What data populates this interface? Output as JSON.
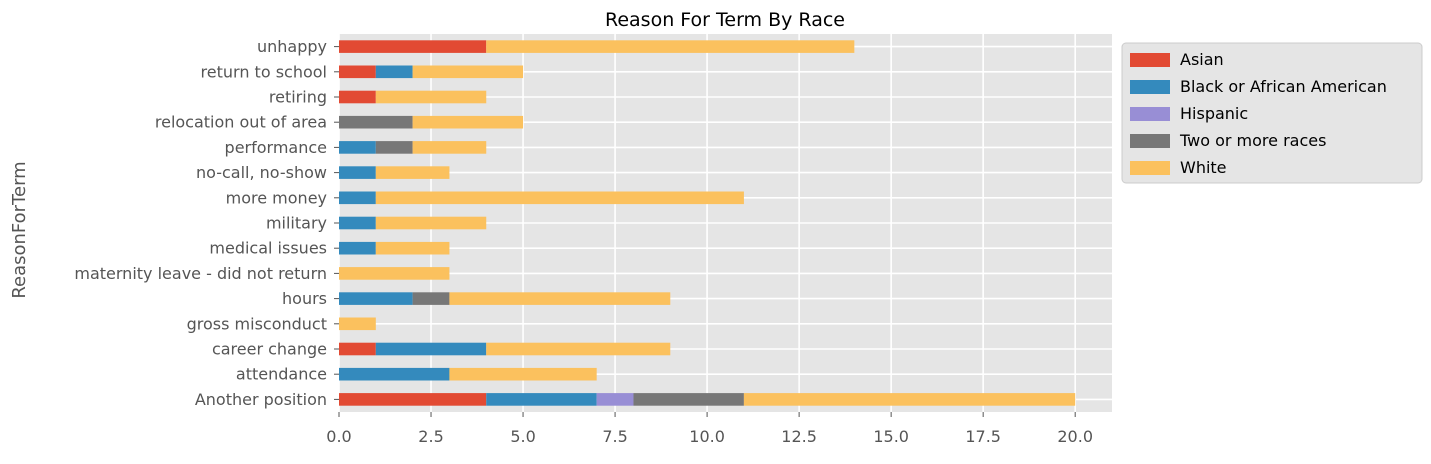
{
  "chart_data": {
    "type": "bar",
    "orientation": "horizontal",
    "stacked": true,
    "title": "Reason For Term By Race",
    "xlabel": "",
    "ylabel": "ReasonForTerm",
    "xlim": [
      0,
      21
    ],
    "xticks": [
      "0.0",
      "2.5",
      "5.0",
      "7.5",
      "10.0",
      "12.5",
      "15.0",
      "17.5",
      "20.0"
    ],
    "xtick_values": [
      0,
      2.5,
      5,
      7.5,
      10,
      12.5,
      15,
      17.5,
      20
    ],
    "grid": true,
    "legend_position": "outside-top-right",
    "categories": [
      "Another position",
      "attendance",
      "career change",
      "gross misconduct",
      "hours",
      "maternity leave - did not return",
      "medical issues",
      "military",
      "more money",
      "no-call, no-show",
      "performance",
      "relocation out of area",
      "retiring",
      "return to school",
      "unhappy"
    ],
    "series": [
      {
        "name": "Asian",
        "color": "#E24A33",
        "values": [
          4,
          0,
          1,
          0,
          0,
          0,
          0,
          0,
          0,
          0,
          0,
          0,
          1,
          1,
          4
        ]
      },
      {
        "name": "Black or African American",
        "color": "#348ABD",
        "values": [
          3,
          3,
          3,
          0,
          2,
          0,
          1,
          1,
          1,
          1,
          1,
          0,
          0,
          1,
          0
        ]
      },
      {
        "name": "Hispanic",
        "color": "#988ED5",
        "values": [
          1,
          0,
          0,
          0,
          0,
          0,
          0,
          0,
          0,
          0,
          0,
          0,
          0,
          0,
          0
        ]
      },
      {
        "name": "Two or more races",
        "color": "#777777",
        "values": [
          3,
          0,
          0,
          0,
          1,
          0,
          0,
          0,
          0,
          0,
          1,
          2,
          0,
          0,
          0
        ]
      },
      {
        "name": "White",
        "color": "#FBC15E",
        "values": [
          9,
          4,
          5,
          1,
          6,
          3,
          2,
          3,
          10,
          2,
          2,
          3,
          3,
          3,
          10
        ]
      }
    ]
  }
}
